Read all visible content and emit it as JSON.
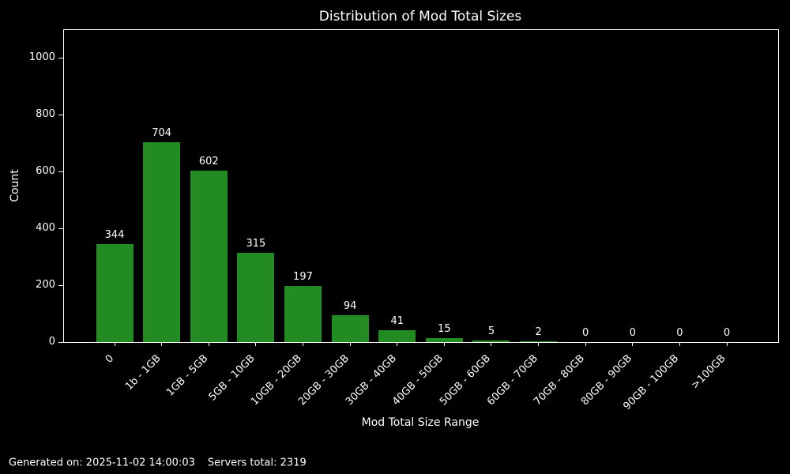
{
  "chart_data": {
    "type": "bar",
    "title": "Distribution of Mod Total Sizes",
    "xlabel": "Mod Total Size Range",
    "ylabel": "Count",
    "categories": [
      "0",
      "1b - 1GB",
      "1GB - 5GB",
      "5GB - 10GB",
      "10GB - 20GB",
      "20GB - 30GB",
      "30GB - 40GB",
      "40GB - 50GB",
      "50GB - 60GB",
      "60GB - 70GB",
      "70GB - 80GB",
      "80GB - 90GB",
      "90GB - 100GB",
      ">100GB"
    ],
    "values": [
      344,
      704,
      602,
      315,
      197,
      94,
      41,
      15,
      5,
      2,
      0,
      0,
      0,
      0
    ],
    "yticks": [
      0,
      200,
      400,
      600,
      800,
      1000
    ],
    "ylim": [
      0,
      1100
    ],
    "x_tick_rotation": 45,
    "bar_value_labels": true,
    "grid": false,
    "legend": null,
    "bar_color": "#228B22",
    "background_color": "#000000",
    "text_color": "#ffffff",
    "axis_color": "#ffffff"
  },
  "footer": {
    "generated": "Generated on: 2025-11-02 14:00:03",
    "servers_total": "Servers total: 2319"
  }
}
